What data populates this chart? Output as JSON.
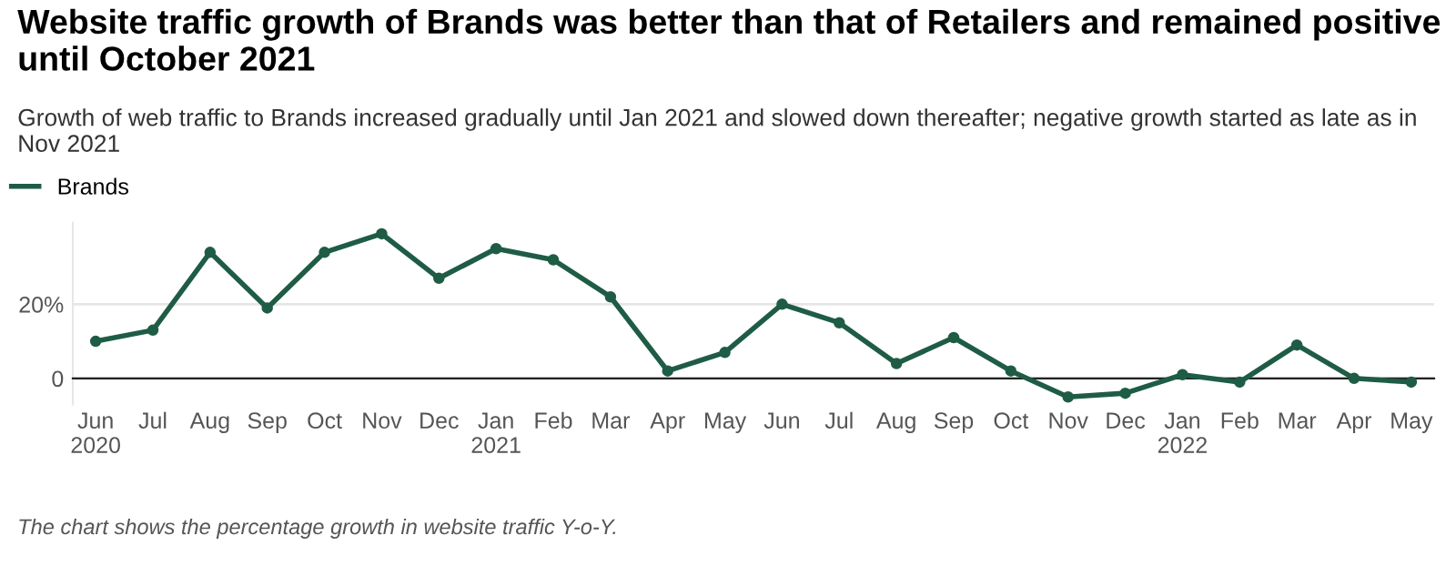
{
  "chart_data": {
    "type": "line",
    "title": "Website traffic growth of Brands was better than that of Retailers and remained positive until October 2021",
    "subtitle": "Growth of web traffic to Brands increased gradually until Jan 2021 and slowed down thereafter; negative growth started as late as in Nov 2021",
    "categories": [
      "Jun\n2020",
      "Jul",
      "Aug",
      "Sep",
      "Oct",
      "Nov",
      "Dec",
      "Jan\n2021",
      "Feb",
      "Mar",
      "Apr",
      "May",
      "Jun",
      "Jul",
      "Aug",
      "Sep",
      "Oct",
      "Nov",
      "Dec",
      "Jan\n2022",
      "Feb",
      "Mar",
      "Apr",
      "May"
    ],
    "series": [
      {
        "name": "Brands",
        "color": "#1f5c45",
        "values": [
          10,
          13,
          34,
          19,
          34,
          39,
          27,
          35,
          32,
          22,
          2,
          7,
          20,
          15,
          4,
          11,
          2,
          -5,
          -4,
          1,
          -1,
          9,
          0,
          -1
        ]
      }
    ],
    "ylim": [
      -7,
      42
    ],
    "yticks": [
      0,
      {
        "value": 20,
        "label": "20%"
      }
    ],
    "grid": "y",
    "marker": "circle",
    "line_style": "solid",
    "legend": "top left",
    "annotations": [
      "The chart shows the percentage growth in website traffic Y-o-Y."
    ]
  }
}
